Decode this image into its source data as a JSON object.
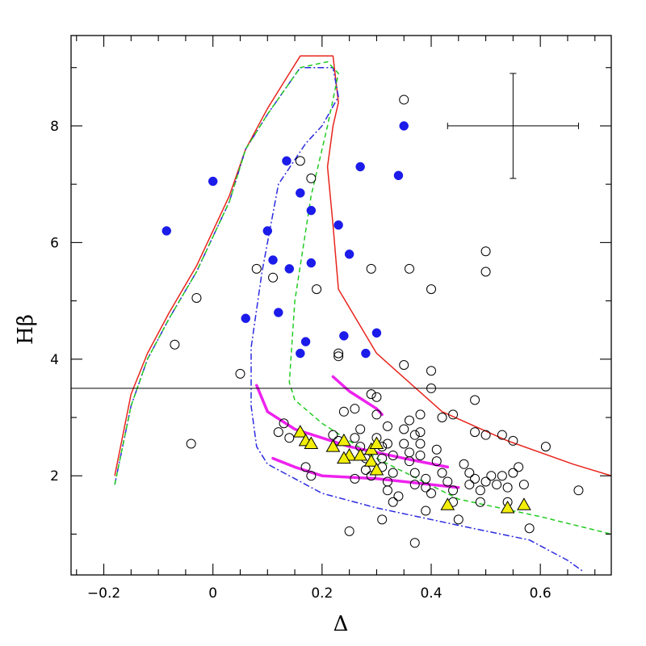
{
  "chart_data": {
    "type": "scatter",
    "xlabel": "Δ",
    "ylabel": "Hβ",
    "xlim": [
      -0.26,
      0.73
    ],
    "ylim": [
      0.3,
      9.55
    ],
    "xticks": [
      -0.2,
      0,
      0.2,
      0.4,
      0.6
    ],
    "xtick_labels": [
      "−0.2",
      "0",
      "0.2",
      "0.4",
      "0.6"
    ],
    "yticks": [
      2,
      4,
      6,
      8
    ],
    "ytick_labels": [
      "2",
      "4",
      "6",
      "8"
    ],
    "hline": 3.5,
    "error_bar": {
      "x": 0.55,
      "y": 8.0,
      "xerr": 0.12,
      "yerr": 0.9
    },
    "open_circles": [
      [
        -0.07,
        4.25
      ],
      [
        -0.03,
        5.05
      ],
      [
        0.05,
        3.75
      ],
      [
        -0.04,
        2.55
      ],
      [
        0.08,
        5.55
      ],
      [
        0.11,
        5.4
      ],
      [
        0.16,
        7.4
      ],
      [
        0.18,
        7.1
      ],
      [
        0.19,
        5.2
      ],
      [
        0.17,
        2.15
      ],
      [
        0.12,
        2.75
      ],
      [
        0.13,
        2.9
      ],
      [
        0.18,
        2.0
      ],
      [
        0.14,
        2.65
      ],
      [
        0.23,
        4.05
      ],
      [
        0.23,
        4.1
      ],
      [
        0.25,
        1.05
      ],
      [
        0.29,
        5.55
      ],
      [
        0.35,
        8.45
      ],
      [
        0.35,
        3.9
      ],
      [
        0.36,
        5.55
      ],
      [
        0.4,
        5.2
      ],
      [
        0.4,
        3.8
      ],
      [
        0.4,
        3.5
      ],
      [
        0.29,
        3.4
      ],
      [
        0.3,
        3.35
      ],
      [
        0.22,
        2.7
      ],
      [
        0.23,
        2.6
      ],
      [
        0.24,
        3.1
      ],
      [
        0.26,
        3.15
      ],
      [
        0.26,
        2.65
      ],
      [
        0.27,
        2.8
      ],
      [
        0.27,
        2.5
      ],
      [
        0.28,
        2.3
      ],
      [
        0.28,
        2.1
      ],
      [
        0.26,
        1.95
      ],
      [
        0.29,
        2.0
      ],
      [
        0.3,
        3.05
      ],
      [
        0.3,
        2.65
      ],
      [
        0.31,
        2.5
      ],
      [
        0.31,
        2.3
      ],
      [
        0.31,
        2.15
      ],
      [
        0.32,
        2.85
      ],
      [
        0.32,
        2.55
      ],
      [
        0.33,
        2.35
      ],
      [
        0.33,
        2.05
      ],
      [
        0.32,
        1.9
      ],
      [
        0.32,
        1.75
      ],
      [
        0.33,
        1.55
      ],
      [
        0.34,
        1.65
      ],
      [
        0.35,
        2.8
      ],
      [
        0.35,
        2.55
      ],
      [
        0.36,
        2.95
      ],
      [
        0.36,
        2.4
      ],
      [
        0.36,
        2.25
      ],
      [
        0.37,
        2.7
      ],
      [
        0.37,
        2.05
      ],
      [
        0.37,
        1.85
      ],
      [
        0.38,
        3.05
      ],
      [
        0.38,
        2.75
      ],
      [
        0.38,
        2.55
      ],
      [
        0.38,
        2.35
      ],
      [
        0.39,
        1.95
      ],
      [
        0.39,
        1.8
      ],
      [
        0.4,
        1.7
      ],
      [
        0.41,
        2.25
      ],
      [
        0.41,
        2.45
      ],
      [
        0.42,
        3.0
      ],
      [
        0.42,
        2.05
      ],
      [
        0.43,
        1.9
      ],
      [
        0.44,
        3.05
      ],
      [
        0.44,
        1.75
      ],
      [
        0.44,
        1.55
      ],
      [
        0.46,
        2.2
      ],
      [
        0.47,
        2.05
      ],
      [
        0.47,
        1.85
      ],
      [
        0.48,
        1.95
      ],
      [
        0.48,
        2.75
      ],
      [
        0.49,
        1.75
      ],
      [
        0.49,
        1.55
      ],
      [
        0.5,
        1.9
      ],
      [
        0.5,
        2.7
      ],
      [
        0.51,
        2.0
      ],
      [
        0.52,
        1.85
      ],
      [
        0.53,
        2.7
      ],
      [
        0.53,
        2.0
      ],
      [
        0.54,
        1.8
      ],
      [
        0.54,
        1.55
      ],
      [
        0.55,
        2.6
      ],
      [
        0.55,
        2.05
      ],
      [
        0.56,
        2.15
      ],
      [
        0.57,
        1.85
      ],
      [
        0.58,
        1.1
      ],
      [
        0.61,
        2.5
      ],
      [
        0.67,
        1.75
      ],
      [
        0.5,
        5.85
      ],
      [
        0.5,
        5.5
      ],
      [
        0.48,
        3.3
      ],
      [
        0.45,
        1.25
      ],
      [
        0.37,
        0.85
      ],
      [
        0.31,
        1.25
      ],
      [
        0.39,
        1.4
      ]
    ],
    "filled_circles": [
      [
        -0.085,
        6.2
      ],
      [
        0.0,
        7.05
      ],
      [
        0.135,
        7.4
      ],
      [
        0.27,
        7.3
      ],
      [
        0.34,
        7.15
      ],
      [
        0.35,
        8.0
      ],
      [
        0.16,
        6.85
      ],
      [
        0.18,
        6.55
      ],
      [
        0.1,
        6.2
      ],
      [
        0.23,
        6.3
      ],
      [
        0.11,
        5.7
      ],
      [
        0.14,
        5.55
      ],
      [
        0.18,
        5.65
      ],
      [
        0.25,
        5.8
      ],
      [
        0.06,
        4.7
      ],
      [
        0.12,
        4.8
      ],
      [
        0.24,
        4.4
      ],
      [
        0.17,
        4.3
      ],
      [
        0.16,
        4.1
      ],
      [
        0.28,
        4.1
      ],
      [
        0.3,
        4.45
      ]
    ],
    "triangles": [
      [
        0.16,
        2.75
      ],
      [
        0.17,
        2.6
      ],
      [
        0.18,
        2.55
      ],
      [
        0.22,
        2.5
      ],
      [
        0.24,
        2.6
      ],
      [
        0.25,
        2.35
      ],
      [
        0.24,
        2.3
      ],
      [
        0.27,
        2.35
      ],
      [
        0.29,
        2.45
      ],
      [
        0.3,
        2.55
      ],
      [
        0.29,
        2.25
      ],
      [
        0.3,
        2.1
      ],
      [
        0.43,
        1.5
      ],
      [
        0.54,
        1.45
      ],
      [
        0.57,
        1.5
      ]
    ],
    "series": [
      {
        "color": "#e8241c",
        "style": "solid",
        "x": [
          -0.18,
          -0.15,
          -0.12,
          -0.08,
          -0.03,
          0.03,
          0.06,
          0.1,
          0.14,
          0.16,
          0.22,
          0.23,
          0.22,
          0.21,
          0.22,
          0.23,
          0.3,
          0.42,
          0.54,
          0.66,
          0.73
        ],
        "y": [
          2.0,
          3.4,
          4.1,
          4.8,
          5.6,
          6.8,
          7.6,
          8.3,
          8.9,
          9.2,
          9.2,
          8.4,
          8.0,
          7.3,
          6.3,
          5.2,
          4.1,
          3.1,
          2.6,
          2.2,
          2.0
        ]
      },
      {
        "color": "#2b2be0",
        "style": "dashdot",
        "x": [
          -0.18,
          -0.15,
          -0.12,
          -0.08,
          -0.03,
          0.03,
          0.06,
          0.1,
          0.13,
          0.16,
          0.22,
          0.23,
          0.2,
          0.17,
          0.12,
          0.09,
          0.07,
          0.07,
          0.08,
          0.1,
          0.15,
          0.2,
          0.3,
          0.45,
          0.58,
          0.65,
          0.68
        ],
        "y": [
          1.85,
          3.2,
          4.0,
          4.7,
          5.5,
          6.7,
          7.6,
          8.2,
          8.6,
          9.0,
          9.0,
          8.5,
          8.0,
          7.7,
          7.0,
          5.5,
          4.2,
          3.2,
          2.5,
          2.2,
          1.95,
          1.7,
          1.45,
          1.15,
          0.9,
          0.55,
          0.35
        ]
      },
      {
        "color": "#22cc22",
        "style": "dashed",
        "x": [
          -0.18,
          -0.15,
          -0.12,
          -0.08,
          -0.03,
          0.03,
          0.06,
          0.1,
          0.13,
          0.16,
          0.21,
          0.23,
          0.21,
          0.18,
          0.15,
          0.14,
          0.15,
          0.2,
          0.3,
          0.45,
          0.6,
          0.73
        ],
        "y": [
          1.85,
          3.2,
          4.0,
          4.7,
          5.5,
          6.7,
          7.6,
          8.2,
          8.6,
          9.0,
          9.1,
          8.9,
          8.0,
          6.8,
          5.0,
          3.6,
          3.3,
          2.9,
          2.3,
          1.6,
          1.3,
          1.0
        ]
      },
      {
        "color": "#ee22ee",
        "style": "thick",
        "x": [
          0.08,
          0.1,
          0.15,
          0.25,
          0.35,
          0.43
        ],
        "y": [
          3.55,
          3.1,
          2.8,
          2.5,
          2.3,
          2.15
        ]
      },
      {
        "color": "#ee22ee",
        "style": "thick",
        "x": [
          0.11,
          0.15,
          0.2,
          0.3,
          0.4,
          0.45
        ],
        "y": [
          2.3,
          2.15,
          2.0,
          1.95,
          1.85,
          1.8
        ]
      },
      {
        "color": "#ee22ee",
        "style": "thick",
        "x": [
          0.22,
          0.25,
          0.3,
          0.31
        ],
        "y": [
          3.7,
          3.45,
          3.15,
          3.05
        ]
      }
    ]
  }
}
